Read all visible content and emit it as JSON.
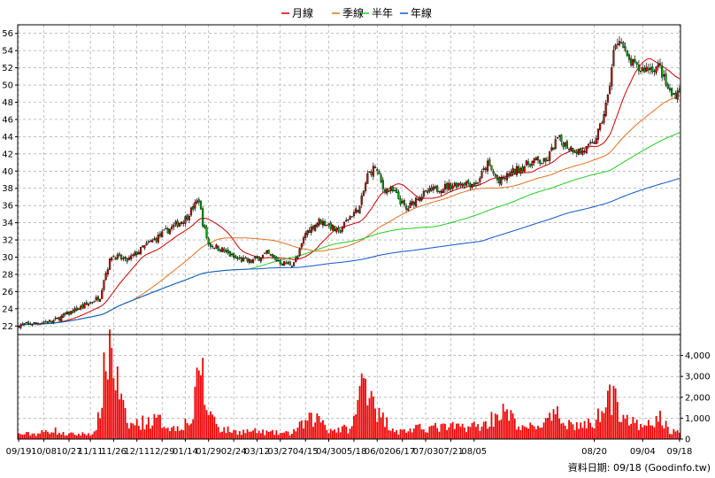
{
  "chart_data": {
    "type": "candlestick",
    "legend": [
      {
        "name": "月線",
        "color": "#cc0000"
      },
      {
        "name": "季線",
        "color": "#e07020"
      },
      {
        "name": "半年",
        "color": "#22cc22"
      },
      {
        "name": "年線",
        "color": "#1155cc"
      }
    ],
    "x_tick_labels": [
      "09/19",
      "10/08",
      "10/27",
      "11/11",
      "11/26",
      "12/11",
      "12/29",
      "01/14",
      "01/29",
      "02/24",
      "03/12",
      "03/27",
      "04/15",
      "04/30",
      "05/18",
      "06/02",
      "06/17",
      "07/03",
      "07/21",
      "08/05",
      "08/20",
      "09/04",
      "09/18"
    ],
    "price_axis": {
      "ylim": [
        21,
        57
      ],
      "ticks": [
        22,
        24,
        26,
        28,
        30,
        32,
        34,
        36,
        38,
        40,
        42,
        44,
        46,
        48,
        50,
        52,
        54,
        56
      ]
    },
    "volume_axis": {
      "ylim": [
        0,
        5000
      ],
      "ticks": [
        0,
        1000,
        2000,
        3000,
        4000
      ],
      "tick_labels": [
        "0",
        "1,000",
        "2,000",
        "3,000",
        "4,000"
      ]
    },
    "price_anchors": [
      [
        0,
        22.1
      ],
      [
        8,
        22.3
      ],
      [
        18,
        22.6
      ],
      [
        26,
        23.5
      ],
      [
        36,
        24.6
      ],
      [
        42,
        25.4
      ],
      [
        44,
        27.5
      ],
      [
        48,
        30.2
      ],
      [
        56,
        29.6
      ],
      [
        66,
        31.4
      ],
      [
        76,
        33.0
      ],
      [
        86,
        34.5
      ],
      [
        93,
        36.7
      ],
      [
        95,
        34.0
      ],
      [
        98,
        31.5
      ],
      [
        104,
        31.0
      ],
      [
        112,
        29.8
      ],
      [
        120,
        29.5
      ],
      [
        128,
        30.4
      ],
      [
        136,
        29.3
      ],
      [
        141,
        29.2
      ],
      [
        144,
        30.0
      ],
      [
        148,
        32.8
      ],
      [
        155,
        34.2
      ],
      [
        160,
        33.8
      ],
      [
        165,
        32.8
      ],
      [
        170,
        34.5
      ],
      [
        176,
        35.8
      ],
      [
        180,
        39.5
      ],
      [
        184,
        40.5
      ],
      [
        188,
        38.0
      ],
      [
        194,
        37.5
      ],
      [
        200,
        35.5
      ],
      [
        206,
        37.0
      ],
      [
        214,
        37.8
      ],
      [
        222,
        38.3
      ],
      [
        230,
        38.7
      ],
      [
        236,
        38.5
      ],
      [
        242,
        40.8
      ],
      [
        248,
        38.6
      ],
      [
        254,
        39.8
      ],
      [
        260,
        40.5
      ],
      [
        266,
        41.2
      ],
      [
        272,
        41.0
      ],
      [
        278,
        43.8
      ],
      [
        284,
        42.8
      ],
      [
        290,
        42.2
      ],
      [
        296,
        43.0
      ],
      [
        300,
        45.0
      ],
      [
        304,
        48.5
      ],
      [
        307,
        53.8
      ],
      [
        310,
        55.6
      ],
      [
        314,
        53.0
      ],
      [
        320,
        51.8
      ],
      [
        326,
        52.0
      ],
      [
        331,
        52.0
      ],
      [
        334,
        50.0
      ],
      [
        337,
        48.8
      ],
      [
        339,
        49.0
      ],
      [
        341,
        49.6
      ]
    ],
    "volume_anchors": [
      [
        0,
        230
      ],
      [
        10,
        260
      ],
      [
        18,
        460
      ],
      [
        22,
        250
      ],
      [
        30,
        220
      ],
      [
        40,
        300
      ],
      [
        47,
        4800
      ],
      [
        49,
        3500
      ],
      [
        52,
        2200
      ],
      [
        56,
        650
      ],
      [
        64,
        800
      ],
      [
        72,
        900
      ],
      [
        80,
        500
      ],
      [
        90,
        950
      ],
      [
        94,
        4200
      ],
      [
        96,
        1700
      ],
      [
        104,
        500
      ],
      [
        112,
        350
      ],
      [
        120,
        380
      ],
      [
        130,
        300
      ],
      [
        140,
        270
      ],
      [
        150,
        900
      ],
      [
        156,
        1000
      ],
      [
        160,
        450
      ],
      [
        172,
        500
      ],
      [
        178,
        3000
      ],
      [
        182,
        2500
      ],
      [
        186,
        1100
      ],
      [
        196,
        350
      ],
      [
        210,
        550
      ],
      [
        220,
        550
      ],
      [
        230,
        600
      ],
      [
        240,
        650
      ],
      [
        248,
        1300
      ],
      [
        252,
        1200
      ],
      [
        260,
        480
      ],
      [
        270,
        700
      ],
      [
        278,
        1100
      ],
      [
        286,
        650
      ],
      [
        296,
        700
      ],
      [
        300,
        1200
      ],
      [
        303,
        2700
      ],
      [
        306,
        1900
      ],
      [
        310,
        1500
      ],
      [
        316,
        800
      ],
      [
        322,
        500
      ],
      [
        331,
        1000
      ],
      [
        336,
        400
      ],
      [
        341,
        300
      ]
    ],
    "x_tick_indices": [
      0,
      13,
      26,
      37,
      49,
      61,
      74,
      86,
      98,
      111,
      123,
      135,
      148,
      160,
      173,
      185,
      198,
      210,
      223,
      235,
      297,
      322,
      341
    ],
    "ma_periods": [
      20,
      60,
      120,
      240
    ],
    "footer": "資料日期: 09/18  (Goodinfo.tw)"
  }
}
